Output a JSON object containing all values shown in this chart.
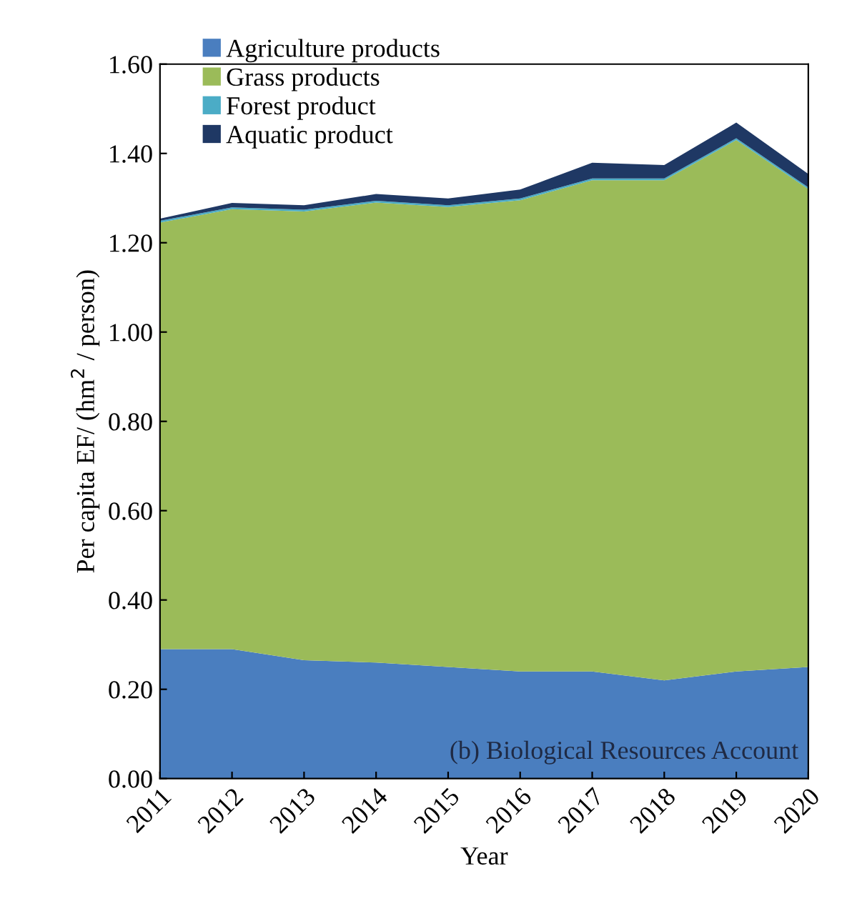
{
  "chart_data": {
    "type": "area",
    "stacked": true,
    "xlabel": "Year",
    "ylabel": "Per capita EF/ (hm$^{2}$ / person)",
    "x": [
      2011,
      2012,
      2013,
      2014,
      2015,
      2016,
      2017,
      2018,
      2019,
      2020
    ],
    "xlim": [
      2011,
      2020
    ],
    "xticks": [
      2011,
      2012,
      2013,
      2014,
      2015,
      2016,
      2017,
      2018,
      2019,
      2020
    ],
    "ylim": [
      0,
      1.6
    ],
    "yticks": [
      {
        "value": 0,
        "label": "0.00"
      },
      {
        "value": 0.2,
        "label": "0.20"
      },
      {
        "value": 0.4,
        "label": "0.40"
      },
      {
        "value": 0.6,
        "label": "0.60"
      },
      {
        "value": 0.8,
        "label": "0.80"
      },
      {
        "value": 1.0,
        "label": "1.00"
      },
      {
        "value": 1.2,
        "label": "1.20"
      },
      {
        "value": 1.4,
        "label": "1.40"
      },
      {
        "value": 1.6,
        "label": "1.60"
      }
    ],
    "series": [
      {
        "name": "Agriculture products",
        "color": "#4a7ebf",
        "values": [
          0.29,
          0.29,
          0.265,
          0.26,
          0.25,
          0.24,
          0.24,
          0.22,
          0.24,
          0.25
        ]
      },
      {
        "name": "Grass products",
        "color": "#9bbb59",
        "values": [
          0.955,
          0.985,
          1.005,
          1.03,
          1.03,
          1.055,
          1.1,
          1.12,
          1.19,
          1.07
        ]
      },
      {
        "name": "Forest product",
        "color": "#4bacc6",
        "values": [
          0.004,
          0.004,
          0.004,
          0.004,
          0.004,
          0.004,
          0.004,
          0.004,
          0.004,
          0.004
        ]
      },
      {
        "name": "Aquatic product",
        "color": "#1f3864",
        "values": [
          0.005,
          0.01,
          0.01,
          0.015,
          0.015,
          0.02,
          0.035,
          0.03,
          0.035,
          0.03
        ]
      }
    ],
    "legend": "top left",
    "grid": false,
    "annotations": [
      "(b) Biological Resources Account"
    ]
  }
}
